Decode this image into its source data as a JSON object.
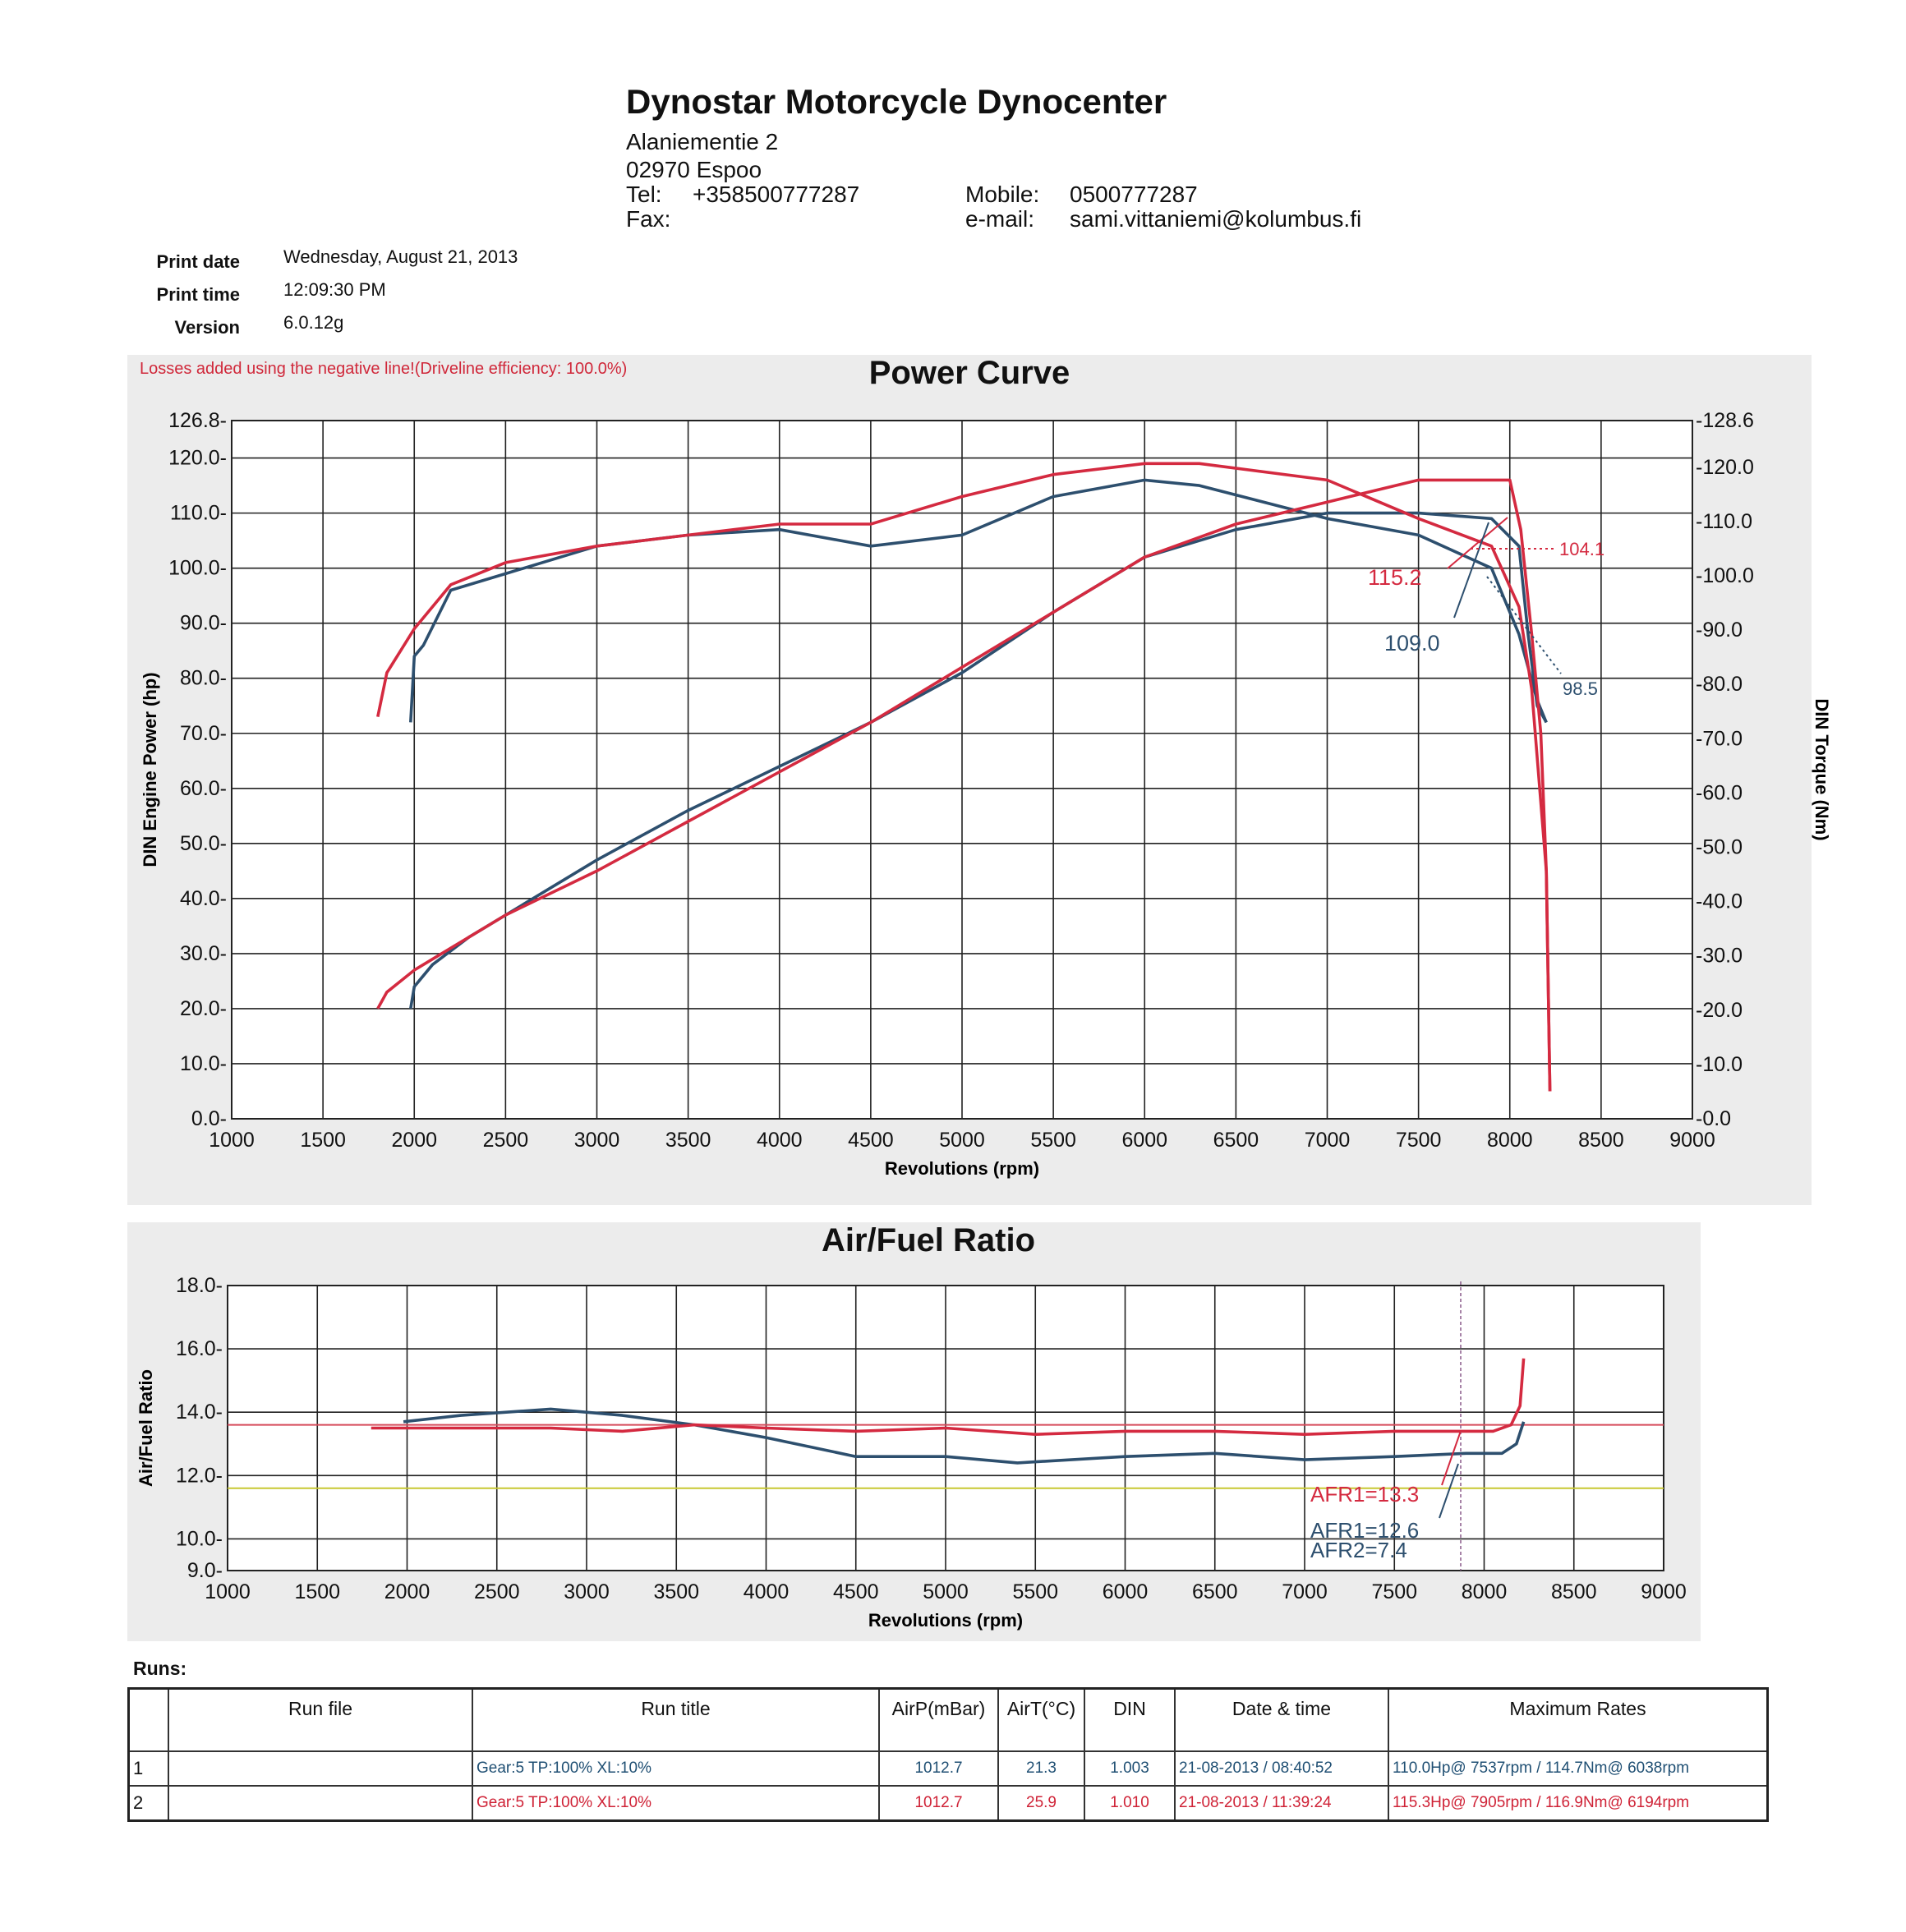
{
  "header": {
    "company": "Dynostar Motorcycle Dynocenter",
    "address1": "Alaniementie 2",
    "address2": "02970  Espoo",
    "tel_label": "Tel:",
    "tel": "+358500777287",
    "fax_label": "Fax:",
    "mobile_label": "Mobile:",
    "mobile": "0500777287",
    "email_label": "e-mail:",
    "email": "sami.vittaniemi@kolumbus.fi"
  },
  "meta": {
    "print_date_label": "Print date",
    "print_date": "Wednesday, August 21, 2013",
    "print_time_label": "Print time",
    "print_time": "12:09:30 PM",
    "version_label": "Version",
    "version": "6.0.12g"
  },
  "power_note": "Losses added using the negative line!(Driveline efficiency: 100.0%)",
  "runs_label": "Runs:",
  "colors": {
    "run1": "#2d4f6e",
    "run2": "#d42a40",
    "afr_ref_red": "#d64a5a",
    "afr_ref_yellow": "#c8c832"
  },
  "chart_data": [
    {
      "type": "line",
      "title": "Power Curve",
      "xlabel": "Revolutions (rpm)",
      "ylabel": "DIN Engine Power (hp)",
      "y2label": "DIN Torque (Nm)",
      "xlim": [
        1000,
        9000
      ],
      "ylim": [
        0,
        126.8
      ],
      "y2lim": [
        0,
        128.6
      ],
      "x_ticks": [
        "1000",
        "1500",
        "2000",
        "2500",
        "3000",
        "3500",
        "4000",
        "4500",
        "5000",
        "5500",
        "6000",
        "6500",
        "7000",
        "7500",
        "8000",
        "8500",
        "9000"
      ],
      "y_ticks": [
        "0.0",
        "10.0",
        "20.0",
        "30.0",
        "40.0",
        "50.0",
        "60.0",
        "70.0",
        "80.0",
        "90.0",
        "100.0",
        "110.0",
        "120.0",
        "126.8"
      ],
      "y2_ticks": [
        "0.0",
        "10.0",
        "20.0",
        "30.0",
        "40.0",
        "50.0",
        "60.0",
        "70.0",
        "80.0",
        "90.0",
        "100.0",
        "110.0",
        "120.0",
        "128.6"
      ],
      "grid": true,
      "series": [
        {
          "run": 1,
          "quantity": "power",
          "x": [
            1980,
            2000,
            2100,
            2300,
            2600,
            3000,
            3500,
            4000,
            4500,
            5000,
            5500,
            6000,
            6500,
            7000,
            7500,
            7900,
            8050,
            8100,
            8150,
            8200
          ],
          "y": [
            20,
            24,
            28,
            33,
            39,
            47,
            56,
            64,
            72,
            81,
            92,
            102,
            107,
            110,
            110,
            109,
            104,
            88,
            75,
            72
          ]
        },
        {
          "run": 1,
          "quantity": "torque",
          "x": [
            1980,
            2000,
            2050,
            2200,
            2500,
            3000,
            3500,
            4000,
            4500,
            5000,
            5500,
            6000,
            6300,
            7000,
            7500,
            7900,
            8050,
            8150,
            8200
          ],
          "y": [
            72,
            84,
            86,
            96,
            99,
            104,
            106,
            107,
            104,
            106,
            113,
            116,
            115,
            109,
            106,
            100,
            88,
            76,
            72
          ]
        },
        {
          "run": 2,
          "quantity": "power",
          "x": [
            1800,
            1850,
            2000,
            2200,
            2500,
            3000,
            3500,
            4000,
            4500,
            5000,
            5500,
            6000,
            6500,
            7000,
            7500,
            8000,
            8060,
            8120,
            8170,
            8200,
            8220
          ],
          "y": [
            20,
            23,
            27,
            31,
            37,
            45,
            54,
            63,
            72,
            82,
            92,
            102,
            108,
            112,
            116,
            116,
            107,
            88,
            70,
            45,
            5
          ]
        },
        {
          "run": 2,
          "quantity": "torque",
          "x": [
            1800,
            1850,
            2000,
            2200,
            2500,
            3000,
            3500,
            4000,
            4500,
            5000,
            5500,
            6000,
            6300,
            7000,
            7500,
            7900,
            8050,
            8120,
            8200,
            8220
          ],
          "y": [
            73,
            81,
            89,
            97,
            101,
            104,
            106,
            108,
            108,
            113,
            117,
            119,
            119,
            116,
            109,
            104,
            93,
            78,
            45,
            5
          ]
        }
      ],
      "annotations": [
        "115.2",
        "109.0",
        "104.1",
        "98.5"
      ]
    },
    {
      "type": "line",
      "title": "Air/Fuel Ratio",
      "xlabel": "Revolutions (rpm)",
      "ylabel": "Air/Fuel Ratio",
      "xlim": [
        1000,
        9000
      ],
      "ylim": [
        9.0,
        18.0
      ],
      "x_ticks": [
        "1000",
        "1500",
        "2000",
        "2500",
        "3000",
        "3500",
        "4000",
        "4500",
        "5000",
        "5500",
        "6000",
        "6500",
        "7000",
        "7500",
        "8000",
        "8500",
        "9000"
      ],
      "y_ticks": [
        "9.0",
        "10.0",
        "12.0",
        "14.0",
        "16.0",
        "18.0"
      ],
      "grid": true,
      "reference_lines": [
        13.6,
        11.6
      ],
      "series": [
        {
          "run": 1,
          "quantity": "afr",
          "x": [
            1980,
            2300,
            2800,
            3200,
            3600,
            4000,
            4500,
            5000,
            5400,
            6000,
            6500,
            7000,
            7500,
            7900,
            8100,
            8180,
            8220
          ],
          "y": [
            13.7,
            13.9,
            14.1,
            13.9,
            13.6,
            13.2,
            12.6,
            12.6,
            12.4,
            12.6,
            12.7,
            12.5,
            12.6,
            12.7,
            12.7,
            13.0,
            13.7
          ]
        },
        {
          "run": 2,
          "quantity": "afr",
          "x": [
            1800,
            2200,
            2800,
            3200,
            3600,
            4000,
            4500,
            5000,
            5500,
            6000,
            6500,
            7000,
            7500,
            7900,
            8050,
            8150,
            8200,
            8220
          ],
          "y": [
            13.5,
            13.5,
            13.5,
            13.4,
            13.6,
            13.5,
            13.4,
            13.5,
            13.3,
            13.4,
            13.4,
            13.3,
            13.4,
            13.4,
            13.4,
            13.6,
            14.2,
            15.7
          ]
        }
      ],
      "annotations": [
        "AFR1=13.3",
        "AFR1=12.6",
        "AFR2=7.4"
      ]
    }
  ],
  "runs_table": {
    "headers": [
      "",
      "Run file",
      "Run title",
      "AirP(mBar)",
      "AirT(°C)",
      "DIN",
      "Date & time",
      "Maximum Rates"
    ],
    "rows": [
      {
        "num": "1",
        "file": "",
        "title": "Gear:5 TP:100% XL:10%",
        "airp": "1012.7",
        "airt": "21.3",
        "din": "1.003",
        "datetime": "21-08-2013 / 08:40:52",
        "max": "110.0Hp@ 7537rpm / 114.7Nm@ 6038rpm"
      },
      {
        "num": "2",
        "file": "",
        "title": "Gear:5 TP:100% XL:10%",
        "airp": "1012.7",
        "airt": "25.9",
        "din": "1.010",
        "datetime": "21-08-2013 / 11:39:24",
        "max": "115.3Hp@ 7905rpm / 116.9Nm@ 6194rpm"
      }
    ]
  }
}
